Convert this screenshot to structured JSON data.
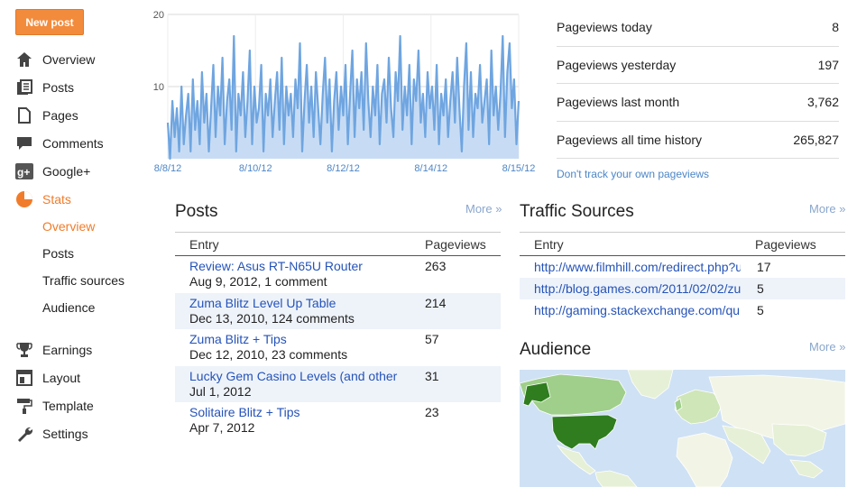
{
  "new_post_label": "New post",
  "nav": [
    {
      "label": "Overview",
      "icon": "home-icon"
    },
    {
      "label": "Posts",
      "icon": "posts-icon"
    },
    {
      "label": "Pages",
      "icon": "pages-icon"
    },
    {
      "label": "Comments",
      "icon": "comments-icon"
    },
    {
      "label": "Google+",
      "icon": "google-plus-icon"
    },
    {
      "label": "Stats",
      "icon": "stats-pie-icon",
      "active": true
    }
  ],
  "stats_sub": [
    "Overview",
    "Posts",
    "Traffic sources",
    "Audience"
  ],
  "nav2": [
    {
      "label": "Earnings",
      "icon": "trophy-icon"
    },
    {
      "label": "Layout",
      "icon": "layout-icon"
    },
    {
      "label": "Template",
      "icon": "paint-roller-icon"
    },
    {
      "label": "Settings",
      "icon": "wrench-icon"
    }
  ],
  "chart_data": {
    "type": "area",
    "x_tick_labels": [
      "8/8/12",
      "8/10/12",
      "8/12/12",
      "8/14/12",
      "8/15/12"
    ],
    "y_tick_labels": [
      "20",
      "10"
    ],
    "ylim": [
      0,
      20
    ],
    "grid": true,
    "values": [
      5,
      0,
      8,
      3,
      7,
      1,
      10,
      2,
      6,
      9,
      1,
      11,
      4,
      8,
      2,
      12,
      5,
      9,
      1,
      7,
      13,
      3,
      10,
      6,
      14,
      2,
      8,
      11,
      4,
      17,
      1,
      9,
      6,
      12,
      3,
      8,
      15,
      2,
      10,
      5,
      7,
      13,
      1,
      9,
      6,
      11,
      3,
      8,
      12,
      4,
      14,
      2,
      10,
      6,
      9,
      3,
      11,
      7,
      16,
      1,
      8,
      13,
      5,
      10,
      3,
      12,
      7,
      2,
      9,
      14,
      5,
      11,
      1,
      8,
      12,
      4,
      10,
      6,
      13,
      2,
      9,
      15,
      3,
      11,
      7,
      12,
      4,
      16,
      8,
      3,
      10,
      6,
      13,
      2,
      9,
      11,
      5,
      14,
      7,
      3,
      12,
      8,
      17,
      4,
      10,
      6,
      13,
      2,
      11,
      8,
      15,
      5,
      9,
      3,
      12,
      7,
      10,
      4,
      13,
      2,
      9,
      6,
      11,
      3,
      8,
      12,
      5,
      14,
      7,
      1,
      10,
      16,
      4,
      12,
      3,
      9,
      7,
      13,
      5,
      8,
      11,
      2,
      15,
      6,
      10,
      4,
      9,
      17,
      3,
      12,
      16,
      7,
      11,
      2,
      8
    ]
  },
  "pageviews": [
    {
      "label": "Pageviews today",
      "value": "8"
    },
    {
      "label": "Pageviews yesterday",
      "value": "197"
    },
    {
      "label": "Pageviews last month",
      "value": "3,762"
    },
    {
      "label": "Pageviews all time history",
      "value": "265,827"
    }
  ],
  "dont_track": "Don't track your own pageviews",
  "posts": {
    "title": "Posts",
    "more": "More »",
    "col_entry": "Entry",
    "col_pageviews": "Pageviews",
    "rows": [
      {
        "title": "Review: Asus RT-N65U Router",
        "meta": "Aug 9, 2012, 1 comment",
        "pageviews": "263"
      },
      {
        "title": "Zuma Blitz Level Up Table",
        "meta": "Dec 13, 2010, 124 comments",
        "pageviews": "214"
      },
      {
        "title": "Zuma Blitz + Tips",
        "meta": "Dec 12, 2010, 23 comments",
        "pageviews": "57"
      },
      {
        "title": "Lucky Gem Casino Levels (and other",
        "meta": "Jul 1, 2012",
        "pageviews": "31"
      },
      {
        "title": "Solitaire Blitz + Tips",
        "meta": "Apr 7, 2012",
        "pageviews": "23"
      }
    ]
  },
  "traffic": {
    "title": "Traffic Sources",
    "more": "More »",
    "col_entry": "Entry",
    "col_pageviews": "Pageviews",
    "rows": [
      {
        "url": "http://www.filmhill.com/redirect.php?u",
        "pageviews": "17"
      },
      {
        "url": "http://blog.games.com/2011/02/02/zu",
        "pageviews": "5"
      },
      {
        "url": "http://gaming.stackexchange.com/qu",
        "pageviews": "5"
      }
    ]
  },
  "audience": {
    "title": "Audience",
    "more": "More »"
  },
  "colors": {
    "accent": "#f07c2b",
    "link": "#2553b8",
    "chart_line": "#6fa5e0",
    "chart_fill": "#c7dcf4"
  }
}
